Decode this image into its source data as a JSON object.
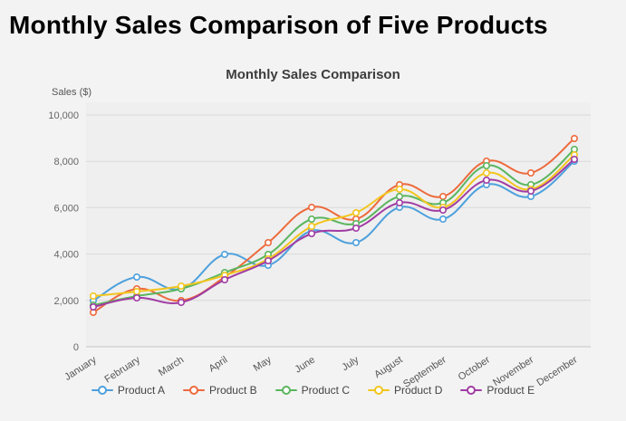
{
  "page": {
    "title": "Monthly Sales Comparison of Five Products",
    "background": "#f3f3f3"
  },
  "chart_data": {
    "type": "line",
    "title": "Monthly Sales Comparison",
    "xlabel": "",
    "ylabel": "Sales ($)",
    "categories": [
      "January",
      "February",
      "March",
      "April",
      "May",
      "June",
      "July",
      "August",
      "September",
      "October",
      "November",
      "December"
    ],
    "ylim": [
      0,
      10000
    ],
    "ytick_interval": 2000,
    "grid": true,
    "smooth": true,
    "legend_position": "bottom",
    "series": [
      {
        "name": "Product A",
        "color": "#4da0dd",
        "values": [
          2000,
          3000,
          2500,
          4000,
          3500,
          5000,
          4500,
          6000,
          5500,
          7000,
          6500,
          8000
        ]
      },
      {
        "name": "Product B",
        "color": "#ed6a3c",
        "values": [
          1500,
          2500,
          2000,
          3000,
          4500,
          6000,
          5500,
          7000,
          6500,
          8000,
          7500,
          9000
        ]
      },
      {
        "name": "Product C",
        "color": "#5ab55e",
        "values": [
          1800,
          2200,
          2500,
          3200,
          4000,
          5500,
          5300,
          6500,
          6200,
          7800,
          7000,
          8500
        ]
      },
      {
        "name": "Product D",
        "color": "#f2c51d",
        "values": [
          2200,
          2400,
          2600,
          3100,
          3800,
          5200,
          5800,
          6800,
          6000,
          7500,
          6800,
          8300
        ]
      },
      {
        "name": "Product E",
        "color": "#a03ca3",
        "values": [
          1700,
          2100,
          1900,
          2900,
          3700,
          4900,
          5100,
          6200,
          5900,
          7200,
          6700,
          8100
        ]
      }
    ],
    "axis_colors": {
      "grid_line": "#d9d9d9",
      "baseline": "#c4c4c4",
      "tick_text": "#666666",
      "category_text": "#555555",
      "plot_fill": "#efefef"
    }
  }
}
